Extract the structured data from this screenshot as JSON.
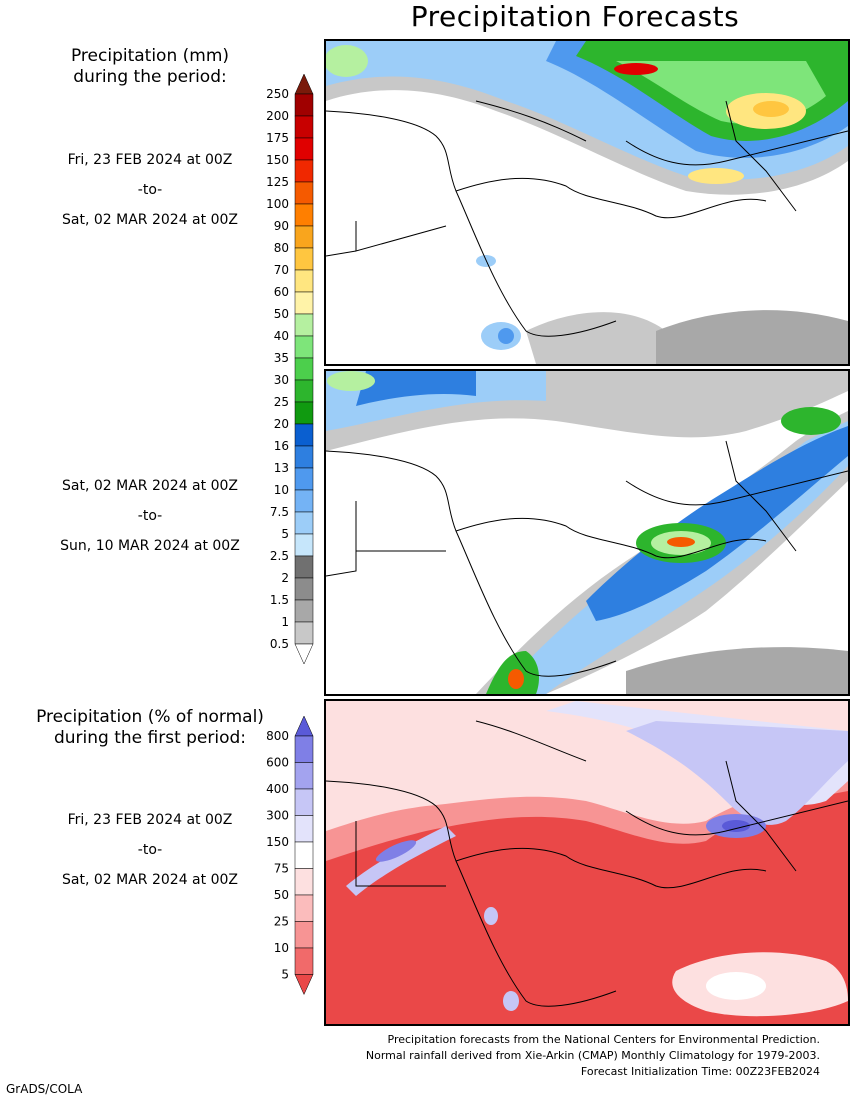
{
  "title": "Precipitation Forecasts",
  "legend_mm": {
    "heading_1": "Precipitation (mm)",
    "heading_2": "during the period:",
    "values": [
      "250",
      "200",
      "175",
      "150",
      "125",
      "100",
      "90",
      "80",
      "70",
      "60",
      "50",
      "40",
      "35",
      "30",
      "25",
      "20",
      "16",
      "13",
      "10",
      "7.5",
      "5",
      "2.5",
      "2",
      "1.5",
      "1",
      "0.5"
    ],
    "colors": [
      "#7a1a0a",
      "#a00000",
      "#c80000",
      "#e00000",
      "#f02800",
      "#f55a00",
      "#ff7f00",
      "#f9a51d",
      "#ffc640",
      "#ffe680",
      "#fff3a8",
      "#b5f0a0",
      "#7ee57a",
      "#4ccf4c",
      "#2db52d",
      "#109a10",
      "#0a5fd0",
      "#2e7fe0",
      "#4f99ee",
      "#74b3f5",
      "#9ccdf8",
      "#c6e6fb",
      "#707070",
      "#8c8c8c",
      "#a8a8a8",
      "#c8c8c8"
    ]
  },
  "period1": {
    "start": "Fri, 23 FEB 2024 at 00Z",
    "sep": "-to-",
    "end": "Sat, 02 MAR 2024 at 00Z"
  },
  "period2": {
    "start": "Sat, 02 MAR 2024 at 00Z",
    "sep": "-to-",
    "end": "Sun, 10 MAR 2024 at 00Z"
  },
  "legend_pct": {
    "heading_1": "Precipitation (% of normal)",
    "heading_2": "during the first period:",
    "values": [
      "800",
      "600",
      "400",
      "300",
      "150",
      "75",
      "50",
      "25",
      "10",
      "5"
    ],
    "colors": [
      "#5a5ad8",
      "#7f7fe6",
      "#a3a3ef",
      "#c6c6f6",
      "#e3e3fb",
      "#ffffff",
      "#fde0e0",
      "#fbbcbc",
      "#f79494",
      "#f16a6a",
      "#ea4848"
    ]
  },
  "period3": {
    "start": "Fri, 23 FEB 2024 at 00Z",
    "sep": "-to-",
    "end": "Sat, 02 MAR 2024 at 00Z"
  },
  "footer": {
    "line1": "Precipitation forecasts from the National Centers for Environmental Prediction.",
    "line2": "Normal rainfall derived from Xie-Arkin (CMAP) Monthly Climatology for 1979-2003.",
    "line3": "Forecast Initialization Time: 00Z23FEB2024"
  },
  "credit": "GrADS/COLA"
}
